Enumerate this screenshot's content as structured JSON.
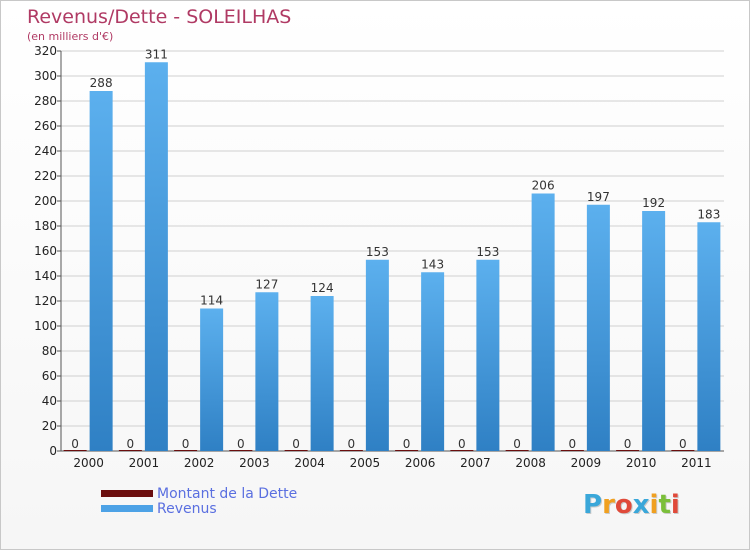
{
  "header": {
    "title": "Revenus/Dette - SOLEILHAS",
    "unit": "(en milliers d'€)"
  },
  "chart_data": {
    "type": "bar",
    "categories": [
      "2000",
      "2001",
      "2002",
      "2003",
      "2004",
      "2005",
      "2006",
      "2007",
      "2008",
      "2009",
      "2010",
      "2011"
    ],
    "series": [
      {
        "name": "Montant de la Dette",
        "values": [
          0,
          0,
          0,
          0,
          0,
          0,
          0,
          0,
          0,
          0,
          0,
          0
        ],
        "color": "#6b0e0e"
      },
      {
        "name": "Revenus",
        "values": [
          288,
          311,
          114,
          127,
          124,
          153,
          143,
          153,
          206,
          197,
          192,
          183
        ],
        "color": "#4da2e6"
      }
    ],
    "ylim": [
      0,
      320
    ],
    "yticks": [
      0,
      20,
      40,
      60,
      80,
      100,
      120,
      140,
      160,
      180,
      200,
      220,
      240,
      260,
      280,
      300,
      320
    ],
    "grid": true,
    "legend": "bottom-left"
  },
  "legend": {
    "items": [
      {
        "label": "Montant de la Dette",
        "color": "#6b0e0e"
      },
      {
        "label": "Revenus",
        "color": "#4da2e6"
      }
    ]
  },
  "logo": {
    "letters": [
      "P",
      "r",
      "o",
      "x",
      "i",
      "t",
      "i"
    ],
    "colors": [
      "#3aa7d9",
      "#f0a020",
      "#e04a3a",
      "#3aa7d9",
      "#f0a020",
      "#7bbf3a",
      "#e04a3a"
    ]
  }
}
